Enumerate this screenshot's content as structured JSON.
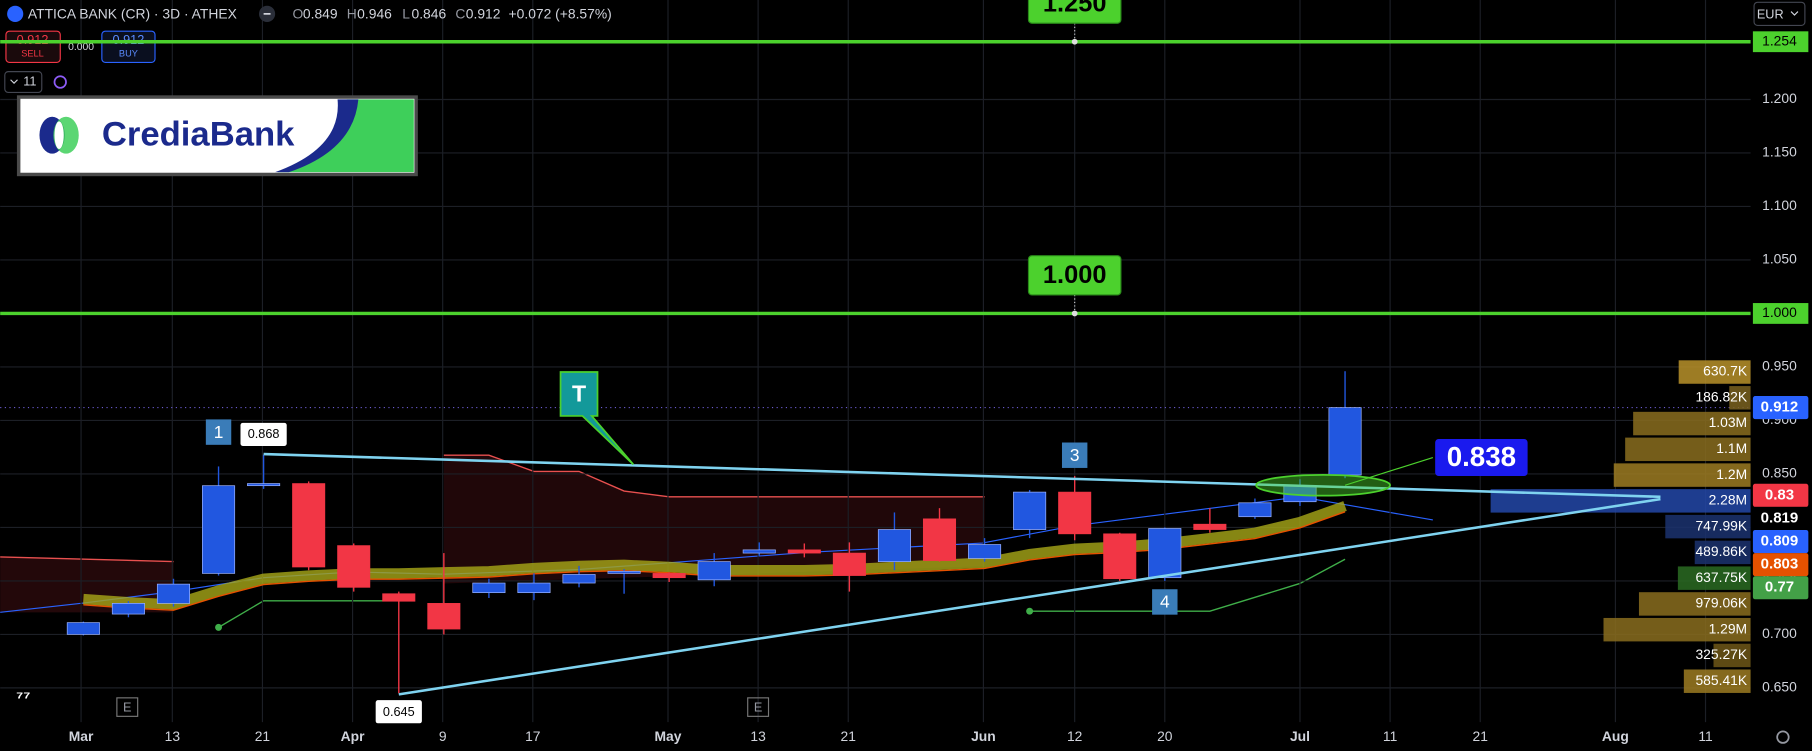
{
  "header": {
    "symbol": "ATTICA BANK (CR) · 3D · ATHEX",
    "ohlc": [
      {
        "label": "O",
        "value": "0.849"
      },
      {
        "label": "H",
        "value": "0.946"
      },
      {
        "label": "L",
        "value": "0.846"
      },
      {
        "label": "C",
        "value": "0.912"
      }
    ],
    "change": "+0.072 (+8.57%)",
    "sell_price": "0.912",
    "sell_label": "SELL",
    "spread": "0.000",
    "buy_price": "0.912",
    "buy_label": "BUY",
    "interval": "11",
    "currency": "EUR"
  },
  "logo": "CrediaBank",
  "annotations": {
    "marker_1": "1",
    "marker_3": "3",
    "marker_4": "4",
    "callout": "T",
    "high_label": "0.868",
    "low_label": "0.645",
    "target": "0.838",
    "earnings": [
      "E",
      "E"
    ]
  },
  "chart_data": {
    "type": "candlestick",
    "up_color": "#2157e0",
    "down_color": "#f23645",
    "ma_color": "#a8a818",
    "open": [
      0.7,
      0.719,
      0.729,
      0.757,
      0.839,
      0.841,
      0.783,
      0.738,
      0.729,
      0.739,
      0.739,
      0.748,
      0.757,
      0.757,
      0.751,
      0.776,
      0.779,
      0.776,
      0.768,
      0.808,
      0.771,
      0.798,
      0.833,
      0.794,
      0.753,
      0.803,
      0.81,
      0.824,
      0.849
    ],
    "high": [
      0.712,
      0.731,
      0.752,
      0.857,
      0.868,
      0.843,
      0.785,
      0.74,
      0.776,
      0.752,
      0.757,
      0.764,
      0.761,
      0.758,
      0.776,
      0.786,
      0.785,
      0.786,
      0.814,
      0.818,
      0.79,
      0.835,
      0.848,
      0.795,
      0.8,
      0.818,
      0.827,
      0.845,
      0.946
    ],
    "low": [
      0.699,
      0.716,
      0.726,
      0.755,
      0.836,
      0.76,
      0.74,
      0.645,
      0.7,
      0.734,
      0.732,
      0.744,
      0.738,
      0.749,
      0.745,
      0.773,
      0.772,
      0.74,
      0.76,
      0.768,
      0.768,
      0.79,
      0.788,
      0.75,
      0.75,
      0.795,
      0.808,
      0.82,
      0.846
    ],
    "close": [
      0.711,
      0.729,
      0.747,
      0.839,
      0.841,
      0.763,
      0.744,
      0.731,
      0.705,
      0.748,
      0.748,
      0.756,
      0.759,
      0.753,
      0.768,
      0.779,
      0.776,
      0.755,
      0.798,
      0.769,
      0.784,
      0.833,
      0.794,
      0.752,
      0.799,
      0.798,
      0.823,
      0.839,
      0.912
    ],
    "ma": [
      0.733,
      0.73,
      0.728,
      0.741,
      0.752,
      0.755,
      0.757,
      0.757,
      0.758,
      0.759,
      0.762,
      0.764,
      0.765,
      0.763,
      0.76,
      0.76,
      0.76,
      0.761,
      0.763,
      0.765,
      0.767,
      0.775,
      0.78,
      0.782,
      0.785,
      0.79,
      0.795,
      0.805,
      0.82
    ],
    "xlabels": [
      "Mar",
      "13",
      "21",
      "Apr",
      "9",
      "17",
      "May",
      "13",
      "21",
      "Jun",
      "12",
      "20",
      "Jul",
      "11",
      "21",
      "Aug",
      "11"
    ],
    "ylim": [
      0.618,
      1.293
    ],
    "yticks": [
      {
        "value": 1.2,
        "label": "1.200"
      },
      {
        "value": 1.15,
        "label": "1.150"
      },
      {
        "value": 1.1,
        "label": "1.100"
      },
      {
        "value": 1.05,
        "label": "1.050"
      },
      {
        "value": 1.0,
        "label": "1.000"
      },
      {
        "value": 0.95,
        "label": "0.950"
      },
      {
        "value": 0.9,
        "label": "0.900"
      },
      {
        "value": 0.85,
        "label": "0.850"
      },
      {
        "value": 0.8,
        "label": "0.800"
      },
      {
        "value": 0.75,
        "label": "0.750"
      },
      {
        "value": 0.7,
        "label": "0.700"
      },
      {
        "value": 0.65,
        "label": "0.650"
      }
    ],
    "grid": true,
    "levels": [
      {
        "value": 1.254,
        "label": "1.254",
        "tag": "1.250"
      },
      {
        "value": 1.0,
        "label": "1.000",
        "tag": "1.000"
      }
    ],
    "level_color": "#4cd12d",
    "price_labels": {
      "values": [
        0.912,
        0.83,
        0.819,
        0.809,
        0.803,
        0.77
      ],
      "colors": [
        "#2962ff",
        "#f23645",
        "#000000",
        "#2962ff",
        "#e65100",
        "#43a047"
      ]
    },
    "volume_profile": {
      "values": [
        630700,
        186820,
        1030000,
        1100000,
        1200000,
        2280000,
        747990,
        489860,
        637750,
        979060,
        1290000,
        325270,
        585410
      ],
      "value_labels": [
        "630.7K",
        "186.82K",
        "1.03M",
        "1.1M",
        "1.2M",
        "2.28M",
        "747.99K",
        "489.86K",
        "637.75K",
        "979.06K",
        "1.29M",
        "325.27K",
        "585.41K"
      ],
      "colors": [
        "#b8922a",
        "#7a6220",
        "#8a6d1e",
        "#8a6d1e",
        "#9c7b22",
        "#2348a8",
        "#1b3270",
        "#1b3270",
        "#2a6b22",
        "#8a6d1e",
        "#8a6d1e",
        "#6e5718",
        "#9c7b22"
      ]
    }
  }
}
